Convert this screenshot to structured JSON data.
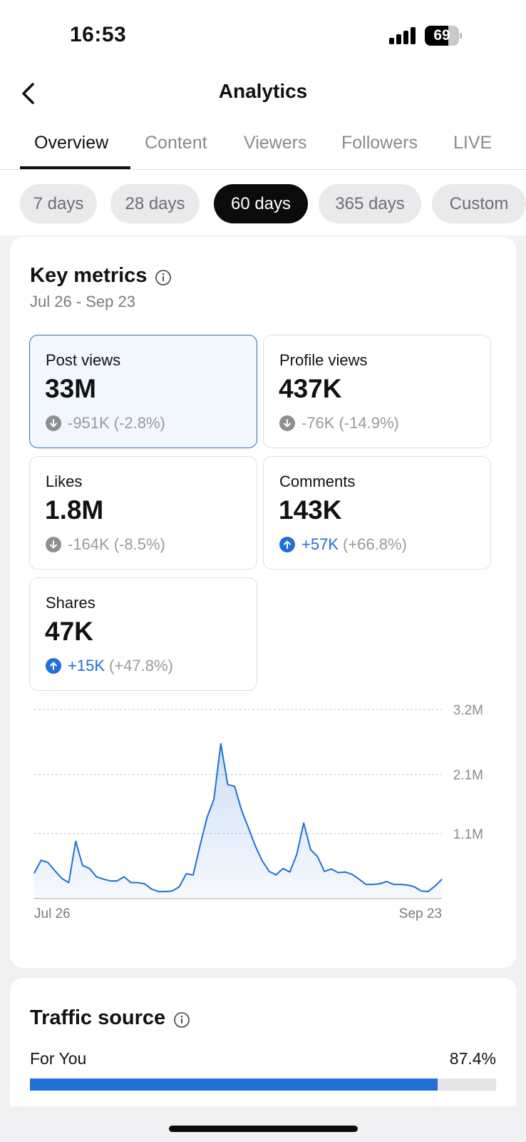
{
  "status_bar": {
    "time": "16:53",
    "battery": "69",
    "battery_level": 0.69
  },
  "header": {
    "title": "Analytics",
    "back_icon": "chevron-left-icon"
  },
  "tabs": [
    {
      "label": "Overview",
      "active": true
    },
    {
      "label": "Content",
      "active": false
    },
    {
      "label": "Viewers",
      "active": false
    },
    {
      "label": "Followers",
      "active": false
    },
    {
      "label": "LIVE",
      "active": false
    }
  ],
  "date_filters": [
    {
      "label": "7 days",
      "active": false
    },
    {
      "label": "28 days",
      "active": false
    },
    {
      "label": "60 days",
      "active": true
    },
    {
      "label": "365 days",
      "active": false
    },
    {
      "label": "Custom",
      "active": false
    }
  ],
  "key_metrics": {
    "title": "Key metrics",
    "date_range": "Jul 26 - Sep 23",
    "metrics": [
      {
        "label": "Post views",
        "value": "33M",
        "change": "-951K",
        "change_pct": "(-2.8%)",
        "direction": "down",
        "selected": true
      },
      {
        "label": "Profile views",
        "value": "437K",
        "change": "-76K",
        "change_pct": "(-14.9%)",
        "direction": "down",
        "selected": false
      },
      {
        "label": "Likes",
        "value": "1.8M",
        "change": "-164K",
        "change_pct": "(-8.5%)",
        "direction": "down",
        "selected": false
      },
      {
        "label": "Comments",
        "value": "143K",
        "change": "+57K",
        "change_pct": "(+66.8%)",
        "direction": "up",
        "selected": false
      },
      {
        "label": "Shares",
        "value": "47K",
        "change": "+15K",
        "change_pct": "(+47.8%)",
        "direction": "up",
        "selected": false
      }
    ]
  },
  "chart_data": {
    "type": "area",
    "title": "Post views",
    "x_start_label": "Jul 26",
    "x_end_label": "Sep 23",
    "y_ticks": [
      "3.2M",
      "2.1M",
      "1.1M"
    ],
    "y_tick_values": [
      3200000,
      2100000,
      1100000
    ],
    "ylim": [
      0,
      3200000
    ],
    "values": [
      430000,
      650000,
      610000,
      470000,
      340000,
      270000,
      970000,
      560000,
      510000,
      370000,
      330000,
      300000,
      300000,
      370000,
      270000,
      270000,
      250000,
      160000,
      120000,
      120000,
      130000,
      200000,
      420000,
      400000,
      900000,
      1370000,
      1680000,
      2620000,
      1930000,
      1900000,
      1500000,
      1200000,
      890000,
      640000,
      460000,
      400000,
      510000,
      450000,
      750000,
      1280000,
      830000,
      710000,
      460000,
      500000,
      440000,
      450000,
      410000,
      330000,
      240000,
      240000,
      250000,
      290000,
      240000,
      240000,
      230000,
      200000,
      130000,
      120000,
      210000,
      330000
    ],
    "color": "#1f6fd6"
  },
  "traffic_source": {
    "title": "Traffic source",
    "items": [
      {
        "label": "For You",
        "value": "87.4%",
        "fraction": 0.874
      }
    ]
  },
  "colors": {
    "accent": "#1f6fd6",
    "selected_border": "#2f6fb3",
    "selected_bg": "#f2f7fe"
  }
}
